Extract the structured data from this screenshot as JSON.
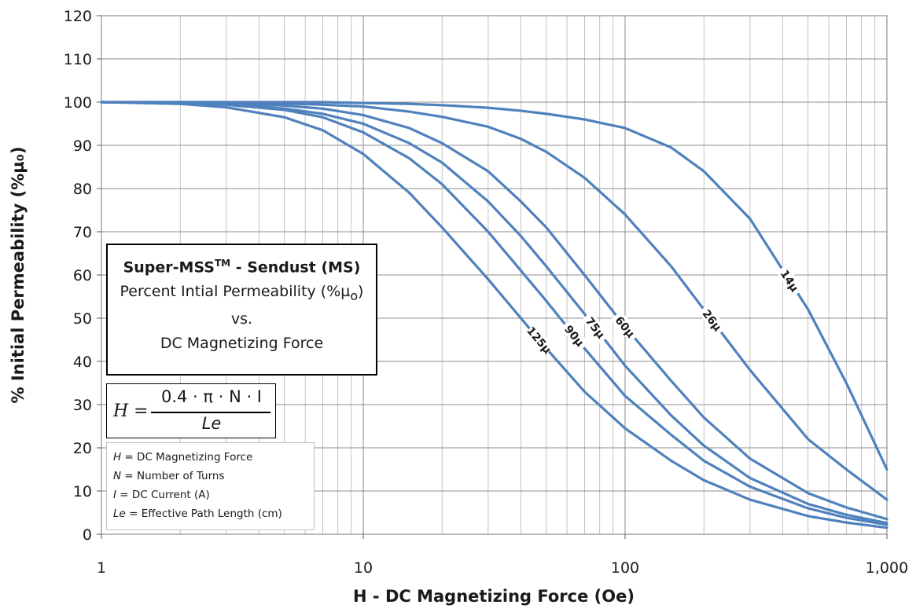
{
  "chart_data": {
    "type": "line",
    "xlabel": "H - DC Magnetizing Force (Oe)",
    "ylabel": "% Initial Permeability (%µ₀)",
    "xscale": "log",
    "xlim": [
      1,
      1000
    ],
    "ylim": [
      0,
      120
    ],
    "x_ticks": [
      1,
      10,
      100,
      1000
    ],
    "x_tick_labels": [
      "1",
      "10",
      "100",
      "1,000"
    ],
    "y_ticks": [
      0,
      10,
      20,
      30,
      40,
      50,
      60,
      70,
      80,
      90,
      100,
      110,
      120
    ],
    "y_tick_labels": [
      "0",
      "10",
      "20",
      "30",
      "40",
      "50",
      "60",
      "70",
      "80",
      "90",
      "100",
      "110",
      "120"
    ],
    "grid": "on",
    "series": [
      {
        "name": "125µ",
        "label_at": 47,
        "x": [
          1,
          2,
          3,
          5,
          7,
          10,
          15,
          20,
          30,
          40,
          50,
          70,
          100,
          150,
          200,
          300,
          500,
          700,
          1000
        ],
        "values": [
          100,
          99.6,
          98.8,
          96.5,
          93.5,
          88,
          79,
          71,
          59,
          50,
          43,
          33,
          24.5,
          17,
          12.5,
          8,
          4.2,
          2.7,
          1.5
        ]
      },
      {
        "name": "90µ",
        "label_at": 64,
        "x": [
          1,
          2,
          3,
          5,
          7,
          10,
          15,
          20,
          30,
          40,
          50,
          70,
          100,
          150,
          200,
          300,
          500,
          700,
          1000
        ],
        "values": [
          100,
          99.8,
          99.4,
          98.2,
          96.5,
          93,
          87,
          81,
          70,
          61,
          54,
          43,
          32,
          23,
          17,
          11,
          6,
          3.8,
          2.2
        ]
      },
      {
        "name": "75µ",
        "label_at": 77,
        "x": [
          1,
          2,
          3,
          5,
          7,
          10,
          15,
          20,
          30,
          40,
          50,
          70,
          100,
          150,
          200,
          300,
          500,
          700,
          1000
        ],
        "values": [
          100,
          99.8,
          99.5,
          98.5,
          97.3,
          95,
          90.5,
          86,
          77,
          69,
          62,
          51,
          39,
          27.5,
          20.5,
          13,
          7,
          4.5,
          2.6
        ]
      },
      {
        "name": "60µ",
        "label_at": 100,
        "x": [
          1,
          2,
          3,
          5,
          7,
          10,
          15,
          20,
          30,
          40,
          50,
          70,
          100,
          150,
          200,
          300,
          500,
          700,
          1000
        ],
        "values": [
          100,
          99.9,
          99.7,
          99.2,
          98.5,
          97,
          94,
          90.5,
          84,
          77,
          71,
          60,
          48,
          35.5,
          27,
          17.5,
          9.5,
          6.2,
          3.5
        ]
      },
      {
        "name": "26µ",
        "label_at": 215,
        "x": [
          1,
          2,
          3,
          5,
          7,
          10,
          15,
          20,
          30,
          40,
          50,
          70,
          100,
          150,
          200,
          300,
          500,
          700,
          1000
        ],
        "values": [
          100,
          100,
          100,
          99.7,
          99.4,
          99,
          97.8,
          96.6,
          94.3,
          91.5,
          88.5,
          82.5,
          74,
          62,
          52,
          38,
          22,
          15,
          8
        ]
      },
      {
        "name": "14µ",
        "label_at": 425,
        "x": [
          1,
          2,
          3,
          5,
          7,
          10,
          15,
          20,
          30,
          40,
          50,
          70,
          100,
          150,
          200,
          300,
          500,
          700,
          1000
        ],
        "values": [
          100,
          100,
          100,
          100,
          100,
          99.8,
          99.6,
          99.3,
          98.7,
          98,
          97.3,
          96,
          94,
          89.5,
          84,
          73,
          52,
          35,
          15
        ]
      }
    ]
  },
  "title_box": {
    "title_main": "Super-MSS",
    "title_sup": "TM",
    "title_rest": " - Sendust (MS)",
    "line2": "Percent Intial Permeability (%µ",
    "line2_sub": "o",
    "line2_end": ")",
    "line3": "vs.",
    "line4": "DC Magnetizing Force"
  },
  "formula": {
    "lhs": "H =",
    "numerator": "0.4 · π · N · I",
    "denominator": "Le"
  },
  "legend": [
    {
      "symbol": "H",
      "text": " = DC Magnetizing Force"
    },
    {
      "symbol": "N",
      "text": " = Number of Turns"
    },
    {
      "symbol": "I",
      "text": " = DC Current (A)"
    },
    {
      "symbol": "Le",
      "text": " = Effective Path Length (cm)"
    }
  ],
  "colors": {
    "curve": "#4f81bd"
  }
}
